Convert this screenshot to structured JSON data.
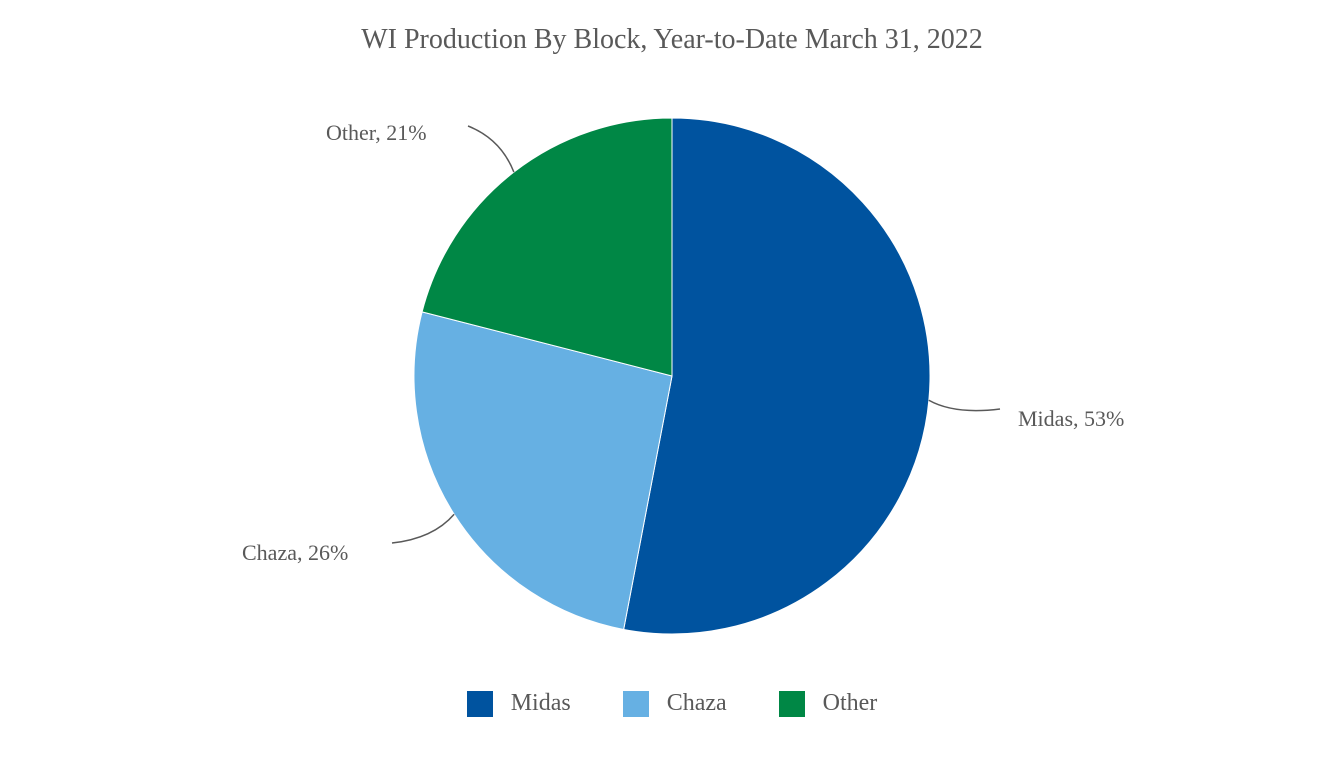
{
  "chart_data": {
    "type": "pie",
    "title": "WI Production By Block, Year-to-Date March 31, 2022",
    "categories": [
      "Midas",
      "Chaza",
      "Other"
    ],
    "values": [
      53,
      26,
      21
    ],
    "data_labels": [
      "Midas, 53%",
      "Chaza, 26%",
      "Other, 21%"
    ],
    "colors": [
      "#00539F",
      "#66B0E3",
      "#008745"
    ],
    "start_angle": "12 o'clock, clockwise",
    "legend_position": "bottom"
  }
}
